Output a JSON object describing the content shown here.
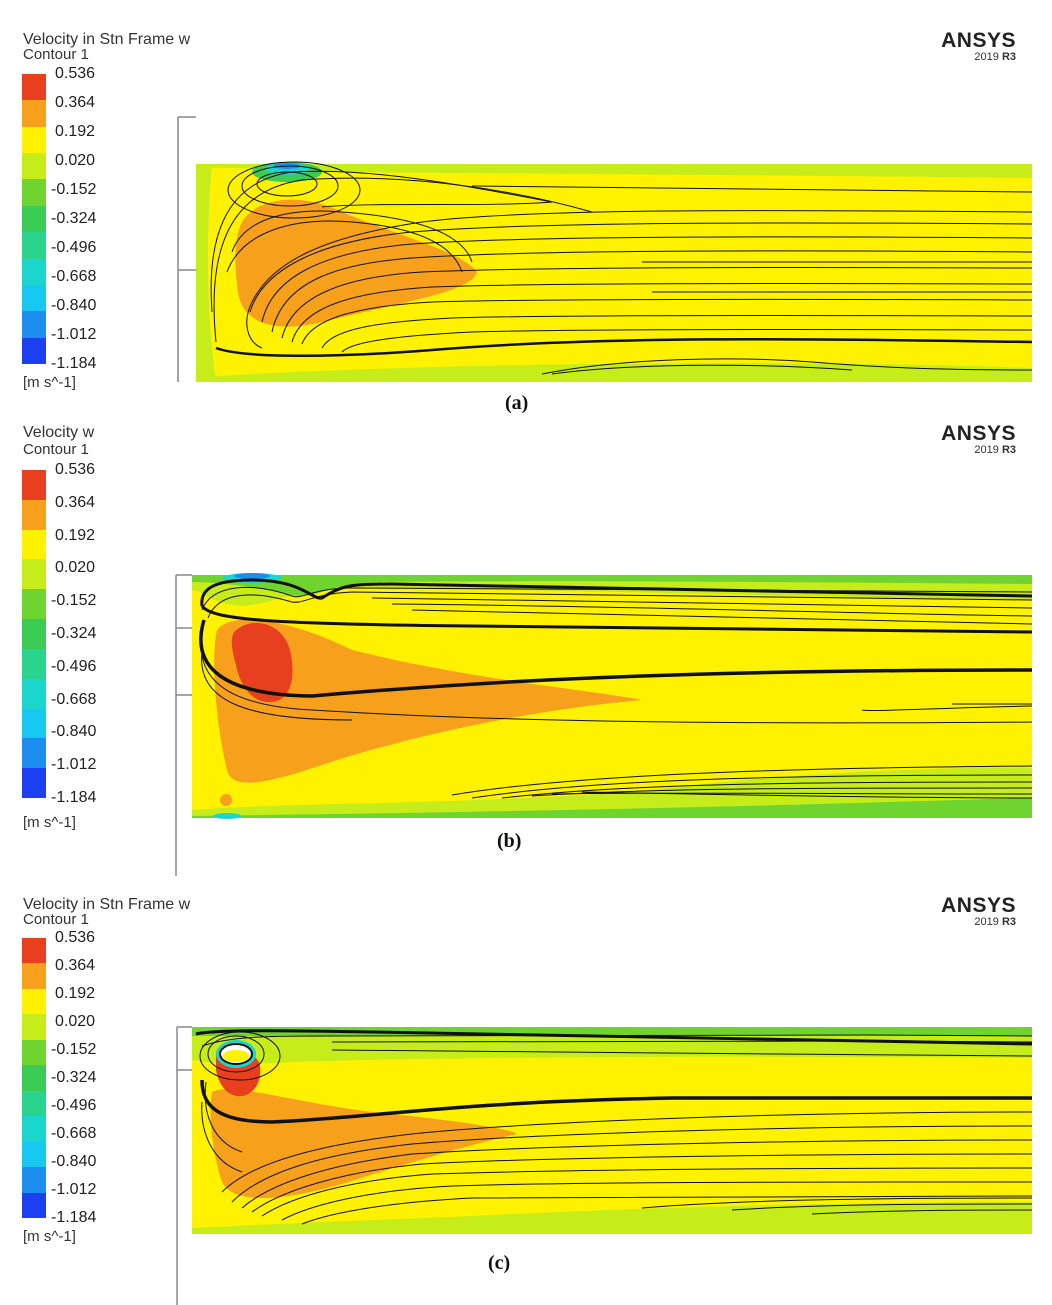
{
  "brand": {
    "name": "ANSYS",
    "version": "2019",
    "release": "R3"
  },
  "units": "[m s^-1]",
  "colormap": [
    "#e8401e",
    "#f7a01c",
    "#fff200",
    "#c6ec1a",
    "#6fd42f",
    "#3ccc55",
    "#2ad48f",
    "#1ad6cc",
    "#18c8f2",
    "#1c8ef0",
    "#1c3ff0"
  ],
  "scale_ticks": [
    "0.536",
    "0.364",
    "0.192",
    "0.020",
    "-0.152",
    "-0.324",
    "-0.496",
    "-0.668",
    "-0.840",
    "-1.012",
    "-1.184"
  ],
  "panels": [
    {
      "legend_title": "Velocity in Stn Frame w",
      "legend_sub": "Contour 1",
      "caption": "(a)"
    },
    {
      "legend_title": "Velocity w",
      "legend_sub": "Contour 1",
      "caption": "(b)"
    },
    {
      "legend_title": "Velocity in Stn Frame w",
      "legend_sub": "Contour 1",
      "caption": "(c)"
    }
  ]
}
